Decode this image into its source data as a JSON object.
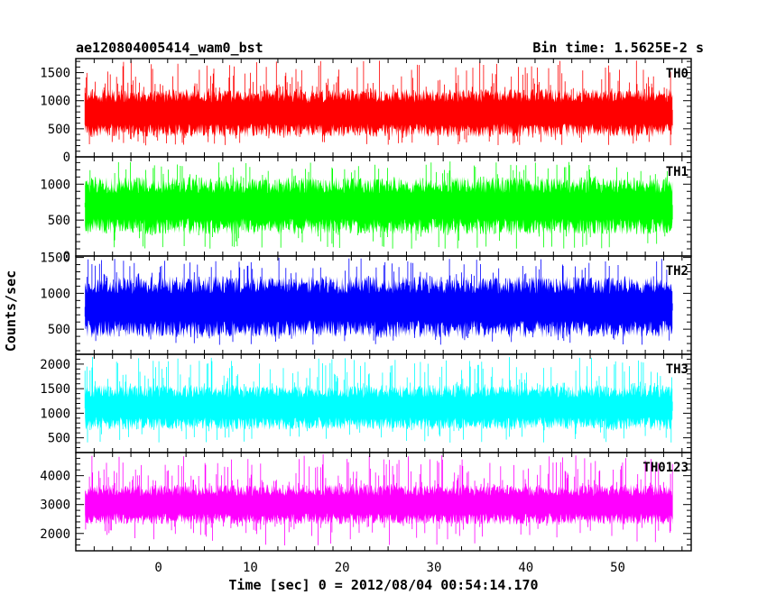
{
  "header": {
    "source": "ae120804005414_wam0_bst",
    "bin_time": "Bin time: 1.5625E-2 s"
  },
  "axes": {
    "xlabel": "Time [sec] 0 = 2012/08/04 00:54:14.170",
    "ylabel": "Counts/sec"
  },
  "chart_data": {
    "type": "line",
    "title": "ae120804005414_wam0_bst",
    "subtitle": "Bin time: 1.5625E-2 s",
    "xlabel": "Time [sec] 0 = 2012/08/04 00:54:14.170",
    "ylabel": "Counts/sec",
    "xlim": [
      -9,
      58
    ],
    "x_ticks": [
      0,
      10,
      20,
      30,
      40,
      50
    ],
    "data_x_range": [
      -8,
      56
    ],
    "bin_time_s": 0.015625,
    "panels": [
      {
        "name": "TH0",
        "color": "#ff0000",
        "ylim": [
          0,
          1750
        ],
        "y_ticks": [
          0,
          500,
          1000,
          1500
        ],
        "baseline": 240,
        "mean": 780,
        "band_low": 470,
        "band_high": 1090,
        "peak_max": 1720
      },
      {
        "name": "TH1",
        "color": "#00ff00",
        "ylim": [
          0,
          1380
        ],
        "y_ticks": [
          0,
          500,
          1000
        ],
        "baseline": 120,
        "mean": 700,
        "band_low": 410,
        "band_high": 990,
        "peak_max": 1320
      },
      {
        "name": "TH2",
        "color": "#0000ff",
        "ylim": [
          150,
          1520
        ],
        "y_ticks": [
          500,
          1000,
          1500
        ],
        "baseline": 330,
        "mean": 810,
        "band_low": 500,
        "band_high": 1120,
        "peak_max": 1500
      },
      {
        "name": "TH3",
        "color": "#00ffff",
        "ylim": [
          200,
          2200
        ],
        "y_ticks": [
          500,
          1000,
          1500,
          2000
        ],
        "baseline": 470,
        "mean": 1100,
        "band_low": 790,
        "band_high": 1450,
        "peak_max": 2150
      },
      {
        "name": "TH0123",
        "color": "#ff00ff",
        "ylim": [
          1400,
          4800
        ],
        "y_ticks": [
          2000,
          3000,
          4000
        ],
        "baseline": 1850,
        "mean": 3000,
        "band_low": 2500,
        "band_high": 3500,
        "peak_max": 4750
      }
    ]
  }
}
